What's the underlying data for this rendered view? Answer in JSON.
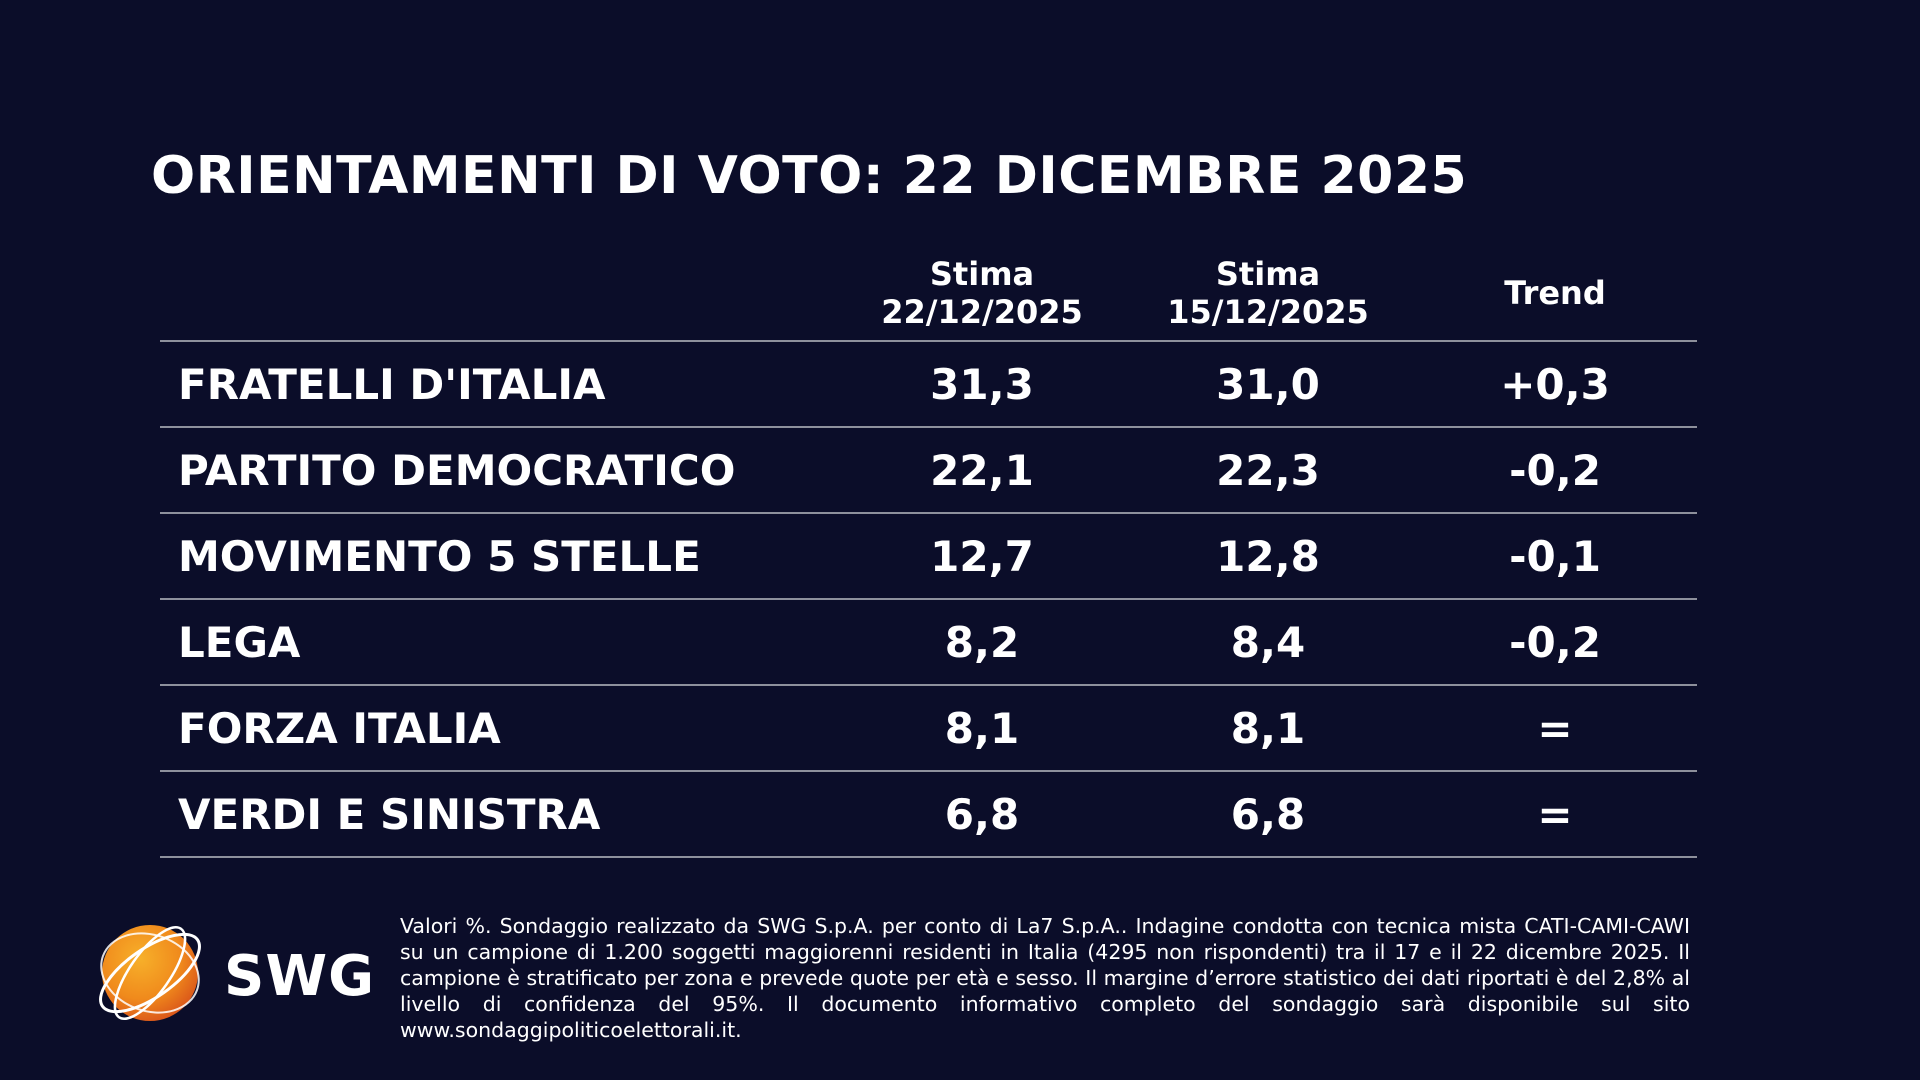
{
  "title": "ORIENTAMENTI DI VOTO: 22 DICEMBRE 2025",
  "columns": {
    "col1": [
      "Stima",
      "22/12/2025"
    ],
    "col2": [
      "Stima",
      "15/12/2025"
    ],
    "col3": "Trend"
  },
  "rows": [
    {
      "party": "FRATELLI D'ITALIA",
      "current": "31,3",
      "previous": "31,0",
      "trend": "+0,3"
    },
    {
      "party": "PARTITO DEMOCRATICO",
      "current": "22,1",
      "previous": "22,3",
      "trend": "-0,2"
    },
    {
      "party": "MOVIMENTO 5 STELLE",
      "current": "12,7",
      "previous": "12,8",
      "trend": "-0,1"
    },
    {
      "party": "LEGA",
      "current": "8,2",
      "previous": "8,4",
      "trend": "-0,2"
    },
    {
      "party": "FORZA ITALIA",
      "current": "8,1",
      "previous": "8,1",
      "trend": "="
    },
    {
      "party": "VERDI E SINISTRA",
      "current": "6,8",
      "previous": "6,8",
      "trend": "="
    }
  ],
  "chart_data": {
    "type": "table",
    "title": "ORIENTAMENTI DI VOTO: 22 DICEMBRE 2025",
    "categories": [
      "FRATELLI D'ITALIA",
      "PARTITO DEMOCRATICO",
      "MOVIMENTO 5 STELLE",
      "LEGA",
      "FORZA ITALIA",
      "VERDI E SINISTRA"
    ],
    "series": [
      {
        "name": "Stima 22/12/2025",
        "values": [
          31.3,
          22.1,
          12.7,
          8.2,
          8.1,
          6.8
        ]
      },
      {
        "name": "Stima 15/12/2025",
        "values": [
          31.0,
          22.3,
          12.8,
          8.4,
          8.1,
          6.8
        ]
      },
      {
        "name": "Trend",
        "values": [
          "+0,3",
          "-0,2",
          "-0,1",
          "-0,2",
          "=",
          "="
        ]
      }
    ]
  },
  "logo": {
    "text": "SWG",
    "icon": "swg-globe-icon",
    "colors": {
      "orange": "#f39a1e",
      "orange_dark": "#e0601a"
    }
  },
  "footnote": "Valori %. Sondaggio realizzato da SWG S.p.A. per conto di La7 S.p.A.. Indagine condotta con tecnica mista CATI-CAMI-CAWI su un campione di 1.200 soggetti maggiorenni residenti in Italia (4295 non rispondenti) tra il 17 e il 22 dicembre 2025. Il campione è stratificato per zona e prevede quote per età e sesso. Il margine d’errore statistico dei dati riportati è del 2,8% al livello di confidenza del 95%. Il documento informativo completo del sondaggio sarà disponibile sul sito www.sondaggipoliticoelettorali.it.",
  "colors": {
    "background": "#0b0d29",
    "text": "#ffffff",
    "divider": "#8e909c"
  }
}
